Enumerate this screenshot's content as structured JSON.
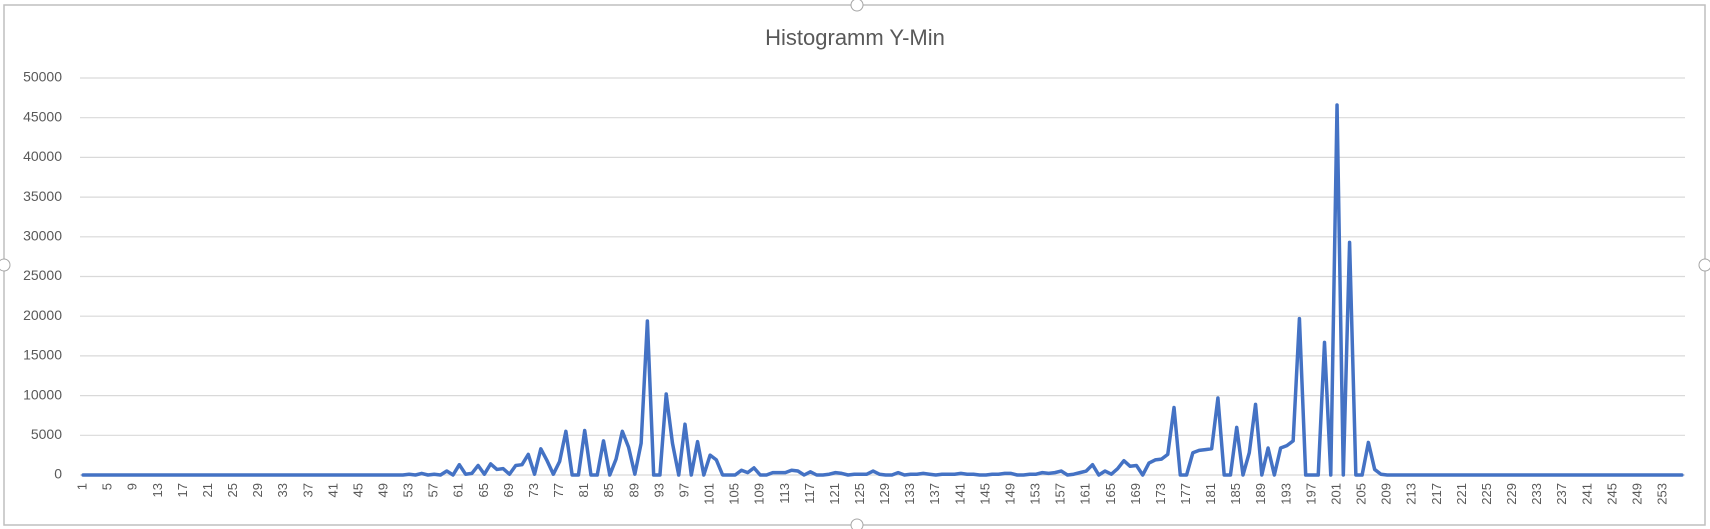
{
  "chart_data": {
    "type": "line",
    "title": "Histogramm Y-Min",
    "categories": [
      1,
      null,
      null,
      null,
      5,
      null,
      null,
      null,
      9,
      null,
      null,
      null,
      13,
      null,
      null,
      null,
      17,
      null,
      null,
      null,
      21,
      null,
      null,
      null,
      25,
      null,
      null,
      null,
      29,
      null,
      null,
      null,
      33,
      null,
      null,
      null,
      37,
      null,
      null,
      null,
      41,
      null,
      null,
      null,
      45,
      null,
      null,
      null,
      49,
      null,
      null,
      null,
      53,
      null,
      null,
      null,
      57,
      null,
      null,
      null,
      61,
      null,
      null,
      null,
      65,
      null,
      null,
      null,
      69,
      null,
      null,
      null,
      73,
      null,
      null,
      null,
      77,
      null,
      null,
      null,
      81,
      null,
      null,
      null,
      85,
      null,
      null,
      null,
      89,
      null,
      null,
      null,
      93,
      null,
      null,
      null,
      97,
      null,
      null,
      null,
      101,
      null,
      null,
      null,
      105,
      null,
      null,
      null,
      109,
      null,
      null,
      null,
      113,
      null,
      null,
      null,
      117,
      null,
      null,
      null,
      121,
      null,
      null,
      null,
      125,
      null,
      null,
      null,
      129,
      null,
      null,
      null,
      133,
      null,
      null,
      null,
      137,
      null,
      null,
      null,
      141,
      null,
      null,
      null,
      145,
      null,
      null,
      null,
      149,
      null,
      null,
      null,
      153,
      null,
      null,
      null,
      157,
      null,
      null,
      null,
      161,
      null,
      null,
      null,
      165,
      null,
      null,
      null,
      169,
      null,
      null,
      null,
      173,
      null,
      null,
      null,
      177,
      null,
      null,
      null,
      181,
      null,
      null,
      null,
      185,
      null,
      null,
      null,
      189,
      null,
      null,
      null,
      193,
      null,
      null,
      null,
      197,
      null,
      null,
      null,
      201,
      null,
      null,
      null,
      205,
      null,
      null,
      null,
      209,
      null,
      null,
      null,
      213,
      null,
      null,
      null,
      217,
      null,
      null,
      null,
      221,
      null,
      null,
      null,
      225,
      null,
      null,
      null,
      229,
      null,
      null,
      null,
      233,
      null,
      null,
      null,
      237,
      null,
      null,
      null,
      241,
      null,
      null,
      null,
      245,
      null,
      null,
      null,
      249,
      null,
      null,
      null,
      253,
      null,
      null,
      null
    ],
    "values": [
      0,
      0,
      0,
      0,
      0,
      0,
      0,
      0,
      0,
      0,
      0,
      0,
      0,
      0,
      0,
      0,
      0,
      0,
      0,
      0,
      0,
      0,
      0,
      0,
      0,
      0,
      0,
      0,
      0,
      0,
      0,
      0,
      0,
      0,
      0,
      0,
      0,
      0,
      0,
      0,
      0,
      0,
      0,
      0,
      0,
      0,
      0,
      0,
      0,
      0,
      0,
      0,
      100,
      0,
      200,
      0,
      100,
      0,
      500,
      0,
      1300,
      100,
      200,
      1200,
      100,
      1400,
      700,
      800,
      100,
      1200,
      1300,
      2600,
      100,
      3300,
      1800,
      100,
      1700,
      5500,
      0,
      0,
      5600,
      0,
      0,
      4300,
      0,
      2000,
      5500,
      3500,
      100,
      4000,
      19400,
      0,
      0,
      10200,
      4000,
      0,
      6400,
      0,
      4200,
      0,
      2500,
      1900,
      0,
      0,
      0,
      600,
      300,
      900,
      0,
      0,
      300,
      300,
      300,
      600,
      500,
      0,
      400,
      0,
      0,
      100,
      300,
      200,
      0,
      100,
      100,
      100,
      500,
      100,
      0,
      0,
      300,
      0,
      100,
      100,
      200,
      100,
      0,
      100,
      100,
      100,
      200,
      100,
      100,
      0,
      0,
      100,
      100,
      200,
      200,
      0,
      0,
      100,
      100,
      300,
      200,
      300,
      500,
      0,
      100,
      300,
      500,
      1300,
      0,
      500,
      100,
      800,
      1800,
      1100,
      1200,
      0,
      1500,
      1900,
      2000,
      2600,
      8500,
      0,
      0,
      2800,
      3100,
      3200,
      3300,
      9700,
      0,
      0,
      6000,
      0,
      2800,
      8900,
      0,
      3400,
      0,
      3400,
      3700,
      4300,
      19700,
      0,
      0,
      0,
      16700,
      0,
      46600,
      0,
      29300,
      0,
      0,
      4100,
      700,
      100,
      0,
      0,
      0,
      0,
      0,
      0,
      0,
      0,
      0,
      0,
      0,
      0,
      0,
      0,
      0,
      0,
      0,
      0,
      0,
      0,
      0,
      0,
      0,
      0,
      0,
      0,
      0,
      0,
      0,
      0,
      0,
      0,
      0,
      0,
      0,
      0,
      0,
      0,
      0,
      0,
      0,
      0,
      0,
      0,
      0,
      0,
      0,
      0
    ],
    "color": "#4472c4",
    "ylim": [
      0,
      50000
    ],
    "yticks": [
      0,
      5000,
      10000,
      15000,
      20000,
      25000,
      30000,
      35000,
      40000,
      45000,
      50000
    ],
    "grid": true
  }
}
